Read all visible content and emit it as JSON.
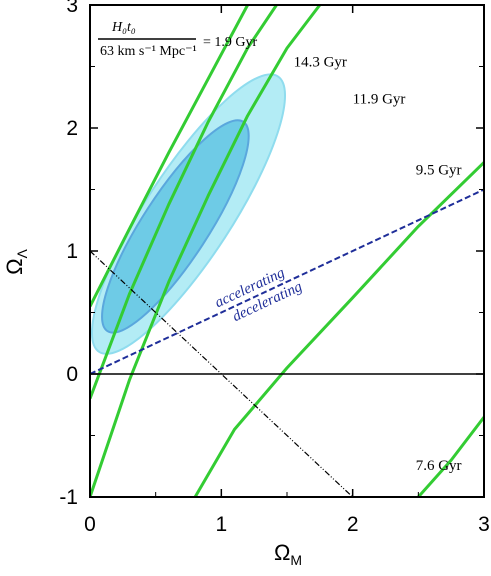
{
  "chart_data": {
    "type": "line",
    "xlabel": "ΩM",
    "ylabel": "ΩΛ",
    "xlim": [
      0,
      3
    ],
    "ylim": [
      -1,
      3
    ],
    "x_ticks": [
      "0",
      "1",
      "2",
      "3"
    ],
    "y_ticks": [
      "-1",
      "0",
      "1",
      "2",
      "3"
    ],
    "formula": {
      "numerator": "H₀t₀",
      "denominator": "63 km s⁻¹ Mpc⁻¹",
      "equals_value": "= 1.9 Gyr"
    },
    "age_curves": [
      {
        "label": "1.9 Gyr",
        "color": "#33cc33",
        "points": [
          [
            0.0,
            0.55
          ],
          [
            0.3,
            1.18
          ],
          [
            0.6,
            1.8
          ],
          [
            0.9,
            2.4
          ],
          [
            1.2,
            3.0
          ]
        ]
      },
      {
        "label": "14.3 Gyr",
        "color": "#33cc33",
        "points": [
          [
            0.0,
            -0.2
          ],
          [
            0.3,
            0.65
          ],
          [
            0.6,
            1.38
          ],
          [
            0.9,
            2.05
          ],
          [
            1.2,
            2.65
          ],
          [
            1.42,
            3.0
          ]
        ]
      },
      {
        "label": "11.9 Gyr",
        "color": "#33cc33",
        "points": [
          [
            0.0,
            -1.0
          ],
          [
            0.3,
            -0.05
          ],
          [
            0.6,
            0.75
          ],
          [
            0.9,
            1.45
          ],
          [
            1.2,
            2.1
          ],
          [
            1.5,
            2.65
          ],
          [
            1.75,
            3.0
          ]
        ]
      },
      {
        "label": "9.5 Gyr",
        "color": "#33cc33",
        "points": [
          [
            0.8,
            -1.0
          ],
          [
            1.1,
            -0.45
          ],
          [
            1.5,
            0.05
          ],
          [
            2.0,
            0.62
          ],
          [
            2.5,
            1.2
          ],
          [
            3.0,
            1.72
          ]
        ]
      },
      {
        "label": "7.6 Gyr",
        "color": "#33cc33",
        "points": [
          [
            2.5,
            -1.0
          ],
          [
            2.75,
            -0.7
          ],
          [
            3.0,
            -0.35
          ]
        ]
      }
    ],
    "acceleration_line": {
      "label_above": "accelerating",
      "label_below": "decelerating",
      "color": "#1f2e99",
      "points": [
        [
          0,
          0
        ],
        [
          3,
          1.5
        ]
      ]
    },
    "flat_universe_line": {
      "points": [
        [
          0,
          1
        ],
        [
          2,
          -1
        ]
      ]
    },
    "zero_line": {
      "y": 0
    },
    "confidence_regions": [
      {
        "level": "outer",
        "color": "#b3ecf5",
        "center": [
          0.75,
          1.3
        ],
        "semi_axes": [
          1.25,
          0.33
        ],
        "angle_deg": 57
      },
      {
        "level": "inner",
        "color": "#6ecbe6",
        "center": [
          0.65,
          1.2
        ],
        "semi_axes": [
          0.95,
          0.25
        ],
        "angle_deg": 57
      }
    ],
    "annotations": [
      {
        "text": "1.9 Gyr",
        "x": 1.05,
        "y": 2.72
      },
      {
        "text": "14.3 Gyr",
        "x": 1.55,
        "y": 2.5
      },
      {
        "text": "11.9 Gyr",
        "x": 2.0,
        "y": 2.2
      },
      {
        "text": "9.5 Gyr",
        "x": 2.48,
        "y": 1.62
      },
      {
        "text": "7.6 Gyr",
        "x": 2.48,
        "y": -0.78
      }
    ]
  }
}
